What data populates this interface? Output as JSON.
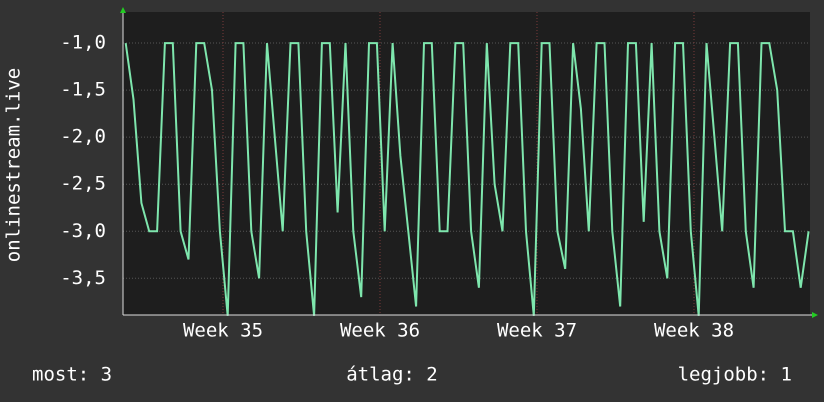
{
  "chart_data": {
    "type": "line",
    "y_label": "onlinestream.live",
    "x": [
      34.38,
      34.43,
      34.48,
      34.53,
      34.58,
      34.63,
      34.68,
      34.73,
      34.78,
      34.83,
      34.88,
      34.93,
      34.98,
      35.03,
      35.08,
      35.13,
      35.18,
      35.23,
      35.28,
      35.33,
      35.38,
      35.43,
      35.48,
      35.53,
      35.58,
      35.63,
      35.68,
      35.73,
      35.78,
      35.83,
      35.88,
      35.93,
      35.98,
      36.03,
      36.08,
      36.13,
      36.18,
      36.23,
      36.28,
      36.33,
      36.38,
      36.43,
      36.48,
      36.53,
      36.58,
      36.63,
      36.68,
      36.73,
      36.78,
      36.83,
      36.88,
      36.93,
      36.98,
      37.03,
      37.08,
      37.13,
      37.18,
      37.23,
      37.28,
      37.33,
      37.38,
      37.43,
      37.48,
      37.53,
      37.58,
      37.63,
      37.68,
      37.73,
      37.78,
      37.83,
      37.88,
      37.93,
      37.98,
      38.03,
      38.08,
      38.13,
      38.18,
      38.23,
      38.28,
      38.33,
      38.38,
      38.43,
      38.48,
      38.53,
      38.58,
      38.63,
      38.68,
      38.73
    ],
    "series": [
      {
        "name": "onlinestream.live",
        "color": "#7ee6ad",
        "values": [
          -1,
          -1.6,
          -2.7,
          -3,
          -3,
          -1,
          -1,
          -3,
          -3.3,
          -1,
          -1,
          -1.5,
          -3,
          -3.9,
          -1,
          -1,
          -3,
          -3.5,
          -1,
          -2,
          -3,
          -1,
          -1,
          -3,
          -3.9,
          -1,
          -1,
          -2.8,
          -1,
          -3,
          -3.7,
          -1,
          -1,
          -3,
          -1,
          -2.2,
          -3,
          -3.8,
          -1,
          -1,
          -3,
          -3,
          -1,
          -1,
          -3,
          -3.6,
          -1,
          -2.5,
          -3,
          -1,
          -1,
          -3,
          -3.9,
          -1,
          -1,
          -3,
          -3.4,
          -1,
          -1.7,
          -3,
          -1,
          -1,
          -3,
          -3.8,
          -1,
          -1,
          -2.9,
          -1,
          -3,
          -3.5,
          -1,
          -1,
          -3,
          -3.9,
          -1,
          -2,
          -3,
          -1,
          -1,
          -3,
          -3.6,
          -1,
          -1,
          -1.5,
          -3,
          -3,
          -3.6,
          -3
        ]
      }
    ],
    "xlim": [
      34.363,
      38.739
    ],
    "xticks": [
      {
        "value": 35,
        "label": "Week 35"
      },
      {
        "value": 36,
        "label": "Week 36"
      },
      {
        "value": 37,
        "label": "Week 37"
      },
      {
        "value": 38,
        "label": "Week 38"
      }
    ],
    "ylim": [
      -3.89,
      -0.67
    ],
    "yticks": [
      {
        "value": -1,
        "label": "-1,0"
      },
      {
        "value": -1.5,
        "label": "-1,5"
      },
      {
        "value": -2,
        "label": "-2,0"
      },
      {
        "value": -2.5,
        "label": "-2,5"
      },
      {
        "value": -3,
        "label": "-3,0"
      },
      {
        "value": -3.5,
        "label": "-3,5"
      }
    ],
    "grid": true,
    "footer": [
      "most: 3",
      "átlag: 2",
      "legjobb: 1"
    ]
  }
}
